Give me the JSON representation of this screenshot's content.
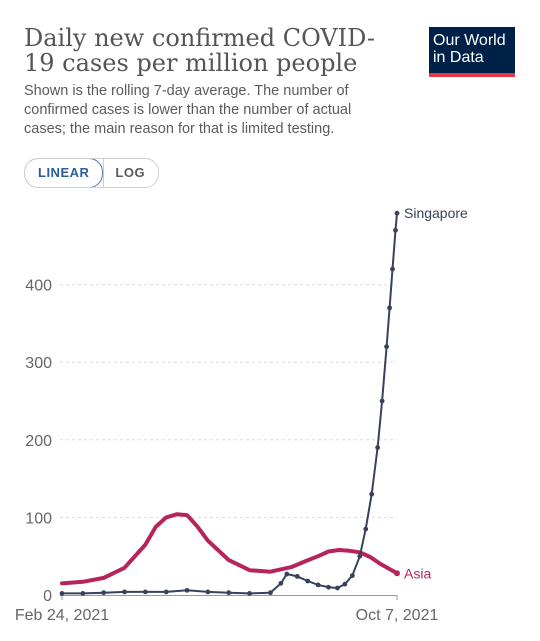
{
  "title": "Daily new confirmed COVID-19 cases per million people",
  "subtitle": "Shown is the rolling 7-day average. The number of confirmed cases is lower than the number of actual cases; the main reason for that is limited testing.",
  "logo": {
    "line1": "Our World",
    "line2": "in Data"
  },
  "scale_toggle": {
    "linear": "LINEAR",
    "log": "LOG",
    "selected": "LINEAR"
  },
  "colors": {
    "singapore": "#37425c",
    "asia": "#b7245c"
  },
  "chart_data": {
    "type": "line",
    "x_type": "date",
    "xlim": [
      "2021-02-24",
      "2021-10-07"
    ],
    "x_tick_labels": [
      "Feb 24, 2021",
      "Oct 7, 2021"
    ],
    "ylim": [
      0,
      500
    ],
    "y_ticks": [
      0,
      100,
      200,
      300,
      400
    ],
    "grid": true,
    "series": [
      {
        "name": "Singapore",
        "markers": true,
        "points": [
          [
            "2021-02-24",
            2
          ],
          [
            "2021-03-10",
            2
          ],
          [
            "2021-03-24",
            3
          ],
          [
            "2021-04-07",
            4
          ],
          [
            "2021-04-21",
            4
          ],
          [
            "2021-05-05",
            4
          ],
          [
            "2021-05-19",
            6
          ],
          [
            "2021-06-02",
            4
          ],
          [
            "2021-06-16",
            3
          ],
          [
            "2021-06-30",
            2
          ],
          [
            "2021-07-14",
            3
          ],
          [
            "2021-07-21",
            15
          ],
          [
            "2021-07-25",
            27
          ],
          [
            "2021-08-01",
            24
          ],
          [
            "2021-08-08",
            18
          ],
          [
            "2021-08-15",
            13
          ],
          [
            "2021-08-22",
            10
          ],
          [
            "2021-08-28",
            9
          ],
          [
            "2021-09-02",
            14
          ],
          [
            "2021-09-07",
            25
          ],
          [
            "2021-09-12",
            50
          ],
          [
            "2021-09-16",
            85
          ],
          [
            "2021-09-20",
            130
          ],
          [
            "2021-09-24",
            190
          ],
          [
            "2021-09-27",
            250
          ],
          [
            "2021-09-30",
            320
          ],
          [
            "2021-10-02",
            370
          ],
          [
            "2021-10-04",
            420
          ],
          [
            "2021-10-06",
            470
          ],
          [
            "2021-10-07",
            492
          ]
        ]
      },
      {
        "name": "Asia",
        "markers": false,
        "points": [
          [
            "2021-02-24",
            15
          ],
          [
            "2021-03-10",
            17
          ],
          [
            "2021-03-24",
            22
          ],
          [
            "2021-04-07",
            35
          ],
          [
            "2021-04-21",
            65
          ],
          [
            "2021-04-28",
            88
          ],
          [
            "2021-05-05",
            100
          ],
          [
            "2021-05-12",
            104
          ],
          [
            "2021-05-19",
            103
          ],
          [
            "2021-05-26",
            88
          ],
          [
            "2021-06-02",
            70
          ],
          [
            "2021-06-16",
            45
          ],
          [
            "2021-06-30",
            32
          ],
          [
            "2021-07-14",
            30
          ],
          [
            "2021-07-28",
            36
          ],
          [
            "2021-08-07",
            44
          ],
          [
            "2021-08-15",
            50
          ],
          [
            "2021-08-22",
            56
          ],
          [
            "2021-08-29",
            58
          ],
          [
            "2021-09-05",
            57
          ],
          [
            "2021-09-12",
            55
          ],
          [
            "2021-09-19",
            49
          ],
          [
            "2021-09-26",
            40
          ],
          [
            "2021-10-07",
            28
          ]
        ]
      }
    ]
  }
}
